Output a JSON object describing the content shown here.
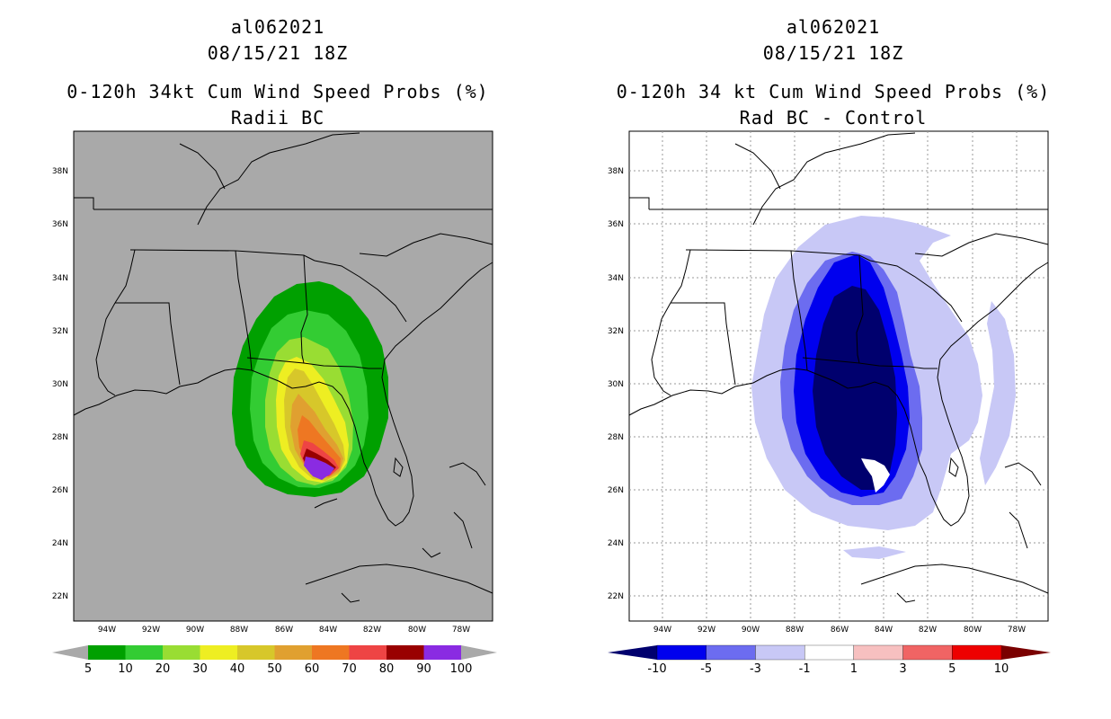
{
  "chart_data": [
    {
      "type": "heatmap",
      "storm_id": "al062021",
      "date": "08/15/21 18Z",
      "title": "0-120h 34kt Cum Wind Speed Probs (%)",
      "subtitle": "Radii BC",
      "background": "#a9a9a9",
      "lat_ticks": [
        "38N",
        "36N",
        "34N",
        "32N",
        "30N",
        "28N",
        "26N",
        "24N",
        "22N"
      ],
      "lon_ticks": [
        "94W",
        "92W",
        "90W",
        "88W",
        "86W",
        "84W",
        "82W",
        "80W",
        "78W"
      ],
      "colorbar": {
        "labels": [
          "5",
          "10",
          "20",
          "30",
          "40",
          "50",
          "60",
          "70",
          "80",
          "90",
          "100"
        ],
        "colors": [
          "#00a000",
          "#33cc33",
          "#99dd33",
          "#eeee22",
          "#d7c72a",
          "#e0a030",
          "#ee7722",
          "#ee4444",
          "#990000",
          "#8a2be2"
        ]
      }
    },
    {
      "type": "heatmap",
      "storm_id": "al062021",
      "date": "08/15/21 18Z",
      "title": "0-120h 34 kt Cum Wind Speed Probs (%)",
      "subtitle": "Rad BC - Control",
      "background": "#ffffff",
      "lat_ticks": [
        "38N",
        "36N",
        "34N",
        "32N",
        "30N",
        "28N",
        "26N",
        "24N",
        "22N"
      ],
      "lon_ticks": [
        "94W",
        "92W",
        "90W",
        "88W",
        "86W",
        "84W",
        "82W",
        "80W",
        "78W"
      ],
      "colorbar": {
        "labels": [
          "-10",
          "-5",
          "-3",
          "-1",
          "1",
          "3",
          "5",
          "10"
        ],
        "colors": [
          "#00006e",
          "#0000ee",
          "#6c6cf0",
          "#c8c8f6",
          "#ffffff",
          "#f7c0c0",
          "#f06464",
          "#ee0000",
          "#7a0000"
        ]
      }
    }
  ]
}
